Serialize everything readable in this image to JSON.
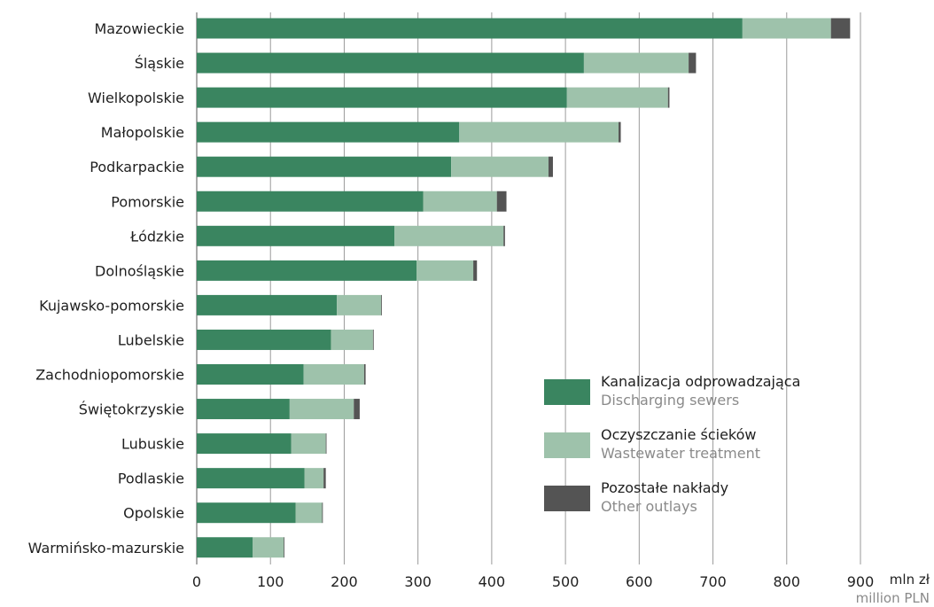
{
  "chart_data": {
    "type": "bar",
    "orientation": "horizontal",
    "stacked": true,
    "categories": [
      "Mazowieckie",
      "Śląskie",
      "Wielkopolskie",
      "Małopolskie",
      "Podkarpackie",
      "Pomorskie",
      "Łódzkie",
      "Dolnośląskie",
      "Kujawsko-pomorskie",
      "Lubelskie",
      "Zachodniopomorskie",
      "Świętokrzyskie",
      "Lubuskie",
      "Podlaskie",
      "Opolskie",
      "Warmińsko-mazurskie"
    ],
    "series": [
      {
        "name": "Kanalizacja odprowadzająca",
        "name_en": "Discharging sewers",
        "color": "#3a8560",
        "values": [
          740,
          525,
          502,
          356,
          345,
          307,
          268,
          298,
          190,
          182,
          145,
          126,
          128,
          146,
          134,
          76
        ]
      },
      {
        "name": "Oczyszczanie ścieków",
        "name_en": "Wastewater treatment",
        "color": "#9ec2ab",
        "values": [
          120,
          142,
          137,
          216,
          132,
          100,
          148,
          77,
          60,
          57,
          82,
          87,
          47,
          26,
          36,
          42
        ]
      },
      {
        "name": "Pozostałe nakłady",
        "name_en": "Other outlays",
        "color": "#545454",
        "values": [
          26,
          10,
          2,
          3,
          6,
          13,
          2,
          5,
          1,
          1,
          2,
          8,
          1,
          3,
          1,
          1
        ]
      }
    ],
    "xlim": [
      0,
      900
    ],
    "xticks": [
      0,
      100,
      200,
      300,
      400,
      500,
      600,
      700,
      800,
      900
    ],
    "xlabel": "mln zł",
    "xlabel_en": "million PLN",
    "grid": true,
    "legend_position": "bottom-right"
  }
}
